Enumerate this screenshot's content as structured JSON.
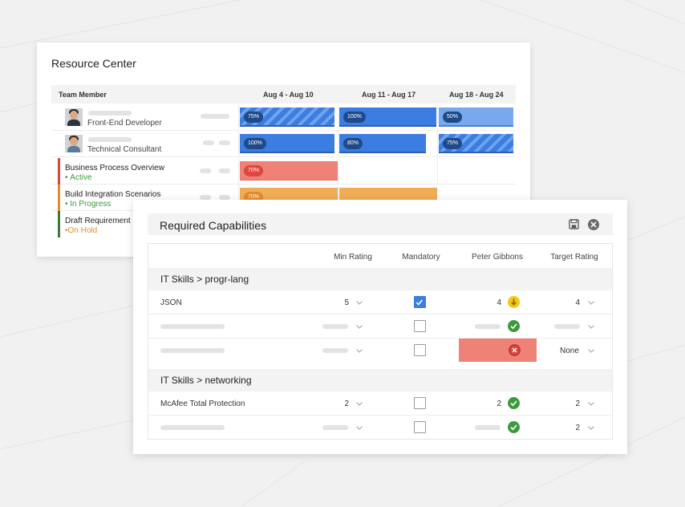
{
  "resource_center": {
    "title": "Resource Center",
    "columns": [
      "Team Member",
      "Aug 4 - Aug 10",
      "Aug 11 - Aug 17",
      "Aug 18 - Aug 24"
    ],
    "members": [
      {
        "role": "Front-End Developer",
        "allocations": [
          "75%",
          "100%",
          "50%"
        ]
      },
      {
        "role": "Technical Consultant",
        "allocations": [
          "100%",
          "80%",
          "75%"
        ]
      }
    ],
    "tasks": [
      {
        "name": "Business Process Overview",
        "status": "Active",
        "status_color": "#3c9a3c",
        "stripe_color": "#d9463e",
        "allocation": "70%"
      },
      {
        "name": "Build Integration Scenarios",
        "status": "In Progress",
        "status_color": "#3c9a3c",
        "stripe_color": "#e28c2a",
        "allocation": "70%"
      },
      {
        "name": "Draft Requirement",
        "status": "On Hold",
        "status_color": "#e28c2a",
        "stripe_color": "#3c7a3c"
      }
    ]
  },
  "capabilities": {
    "title": "Required Capabilities",
    "save_icon": "save-icon",
    "close_icon": "close-icon",
    "columns": {
      "min": "Min Rating",
      "mandatory": "Mandatory",
      "person": "Peter Gibbons",
      "target": "Target Rating"
    },
    "groups": [
      {
        "name": "IT Skills > progr-lang",
        "rows": [
          {
            "label": "JSON",
            "min": "5",
            "mandatory": true,
            "person": "4",
            "person_status": "below",
            "target": "4"
          },
          {
            "label": "",
            "min": "",
            "mandatory": false,
            "person": "",
            "person_status": "ok",
            "target": ""
          },
          {
            "label": "",
            "min": "",
            "mandatory": false,
            "person": "",
            "person_status": "missing",
            "target": "None"
          }
        ]
      },
      {
        "name": "IT Skills > networking",
        "rows": [
          {
            "label": "McAfee Total Protection",
            "min": "2",
            "mandatory": false,
            "person": "2",
            "person_status": "ok",
            "target": "2"
          },
          {
            "label": "",
            "min": "",
            "mandatory": false,
            "person": "",
            "person_status": "ok",
            "target": "2"
          }
        ]
      }
    ]
  },
  "colors": {
    "accent_blue": "#3b7de0",
    "ok_green": "#3c9a3c",
    "warn_yellow": "#f2c811",
    "error_red": "#d9463e"
  }
}
